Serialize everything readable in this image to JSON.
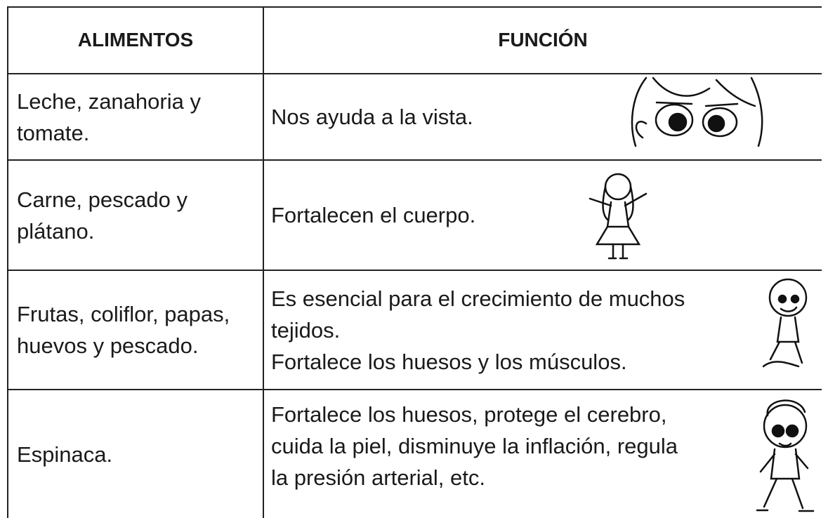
{
  "table": {
    "header": [
      "ALIMENTOS",
      "FUNCIÓN"
    ],
    "rows": [
      [
        [
          "Leche, zanahoria y",
          "tomate."
        ],
        [
          "Nos ayuda a la vista."
        ]
      ],
      [
        [
          "Carne, pescado y",
          "plátano."
        ],
        [
          "Fortalecen el cuerpo."
        ]
      ],
      [
        [
          "Frutas, coliflor, papas,",
          "huevos y pescado."
        ],
        [
          "Es esencial para el crecimiento de muchos",
          "tejidos.",
          "Fortalece los huesos y los músculos."
        ]
      ],
      [
        [
          "Espinaca."
        ],
        [
          "Fortalece los huesos, protege el cerebro,",
          "cuida la piel, disminuye la inflación, regula",
          "la presión arterial, etc."
        ]
      ]
    ]
  }
}
